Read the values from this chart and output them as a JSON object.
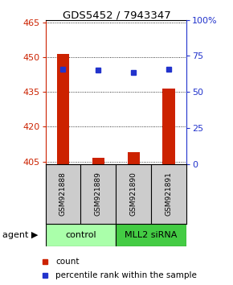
{
  "title": "GDS5452 / 7943347",
  "samples": [
    "GSM921888",
    "GSM921889",
    "GSM921890",
    "GSM921891"
  ],
  "counts": [
    451.5,
    406.5,
    409.0,
    436.5
  ],
  "percentile_ranks": [
    65.5,
    65.0,
    63.5,
    65.5
  ],
  "ylim_left": [
    404,
    466
  ],
  "ylim_right": [
    0,
    100
  ],
  "yticks_left": [
    405,
    420,
    435,
    450,
    465
  ],
  "yticks_right": [
    0,
    25,
    50,
    75,
    100
  ],
  "ytick_labels_right": [
    "0",
    "25",
    "50",
    "75",
    "100%"
  ],
  "bar_color": "#cc2200",
  "dot_color": "#2233cc",
  "bar_bottom": 404,
  "groups": [
    {
      "label": "control",
      "color": "#aaffaa",
      "start": 0,
      "end": 2
    },
    {
      "label": "MLL2 siRNA",
      "color": "#44cc44",
      "start": 2,
      "end": 4
    }
  ],
  "group_row_color": "#cccccc",
  "legend_count_label": "count",
  "legend_pct_label": "percentile rank within the sample",
  "agent_label": "agent",
  "background_color": "#ffffff",
  "plot_bg_color": "#ffffff",
  "axis_color_left": "#cc2200",
  "axis_color_right": "#2233cc",
  "bar_width": 0.35
}
